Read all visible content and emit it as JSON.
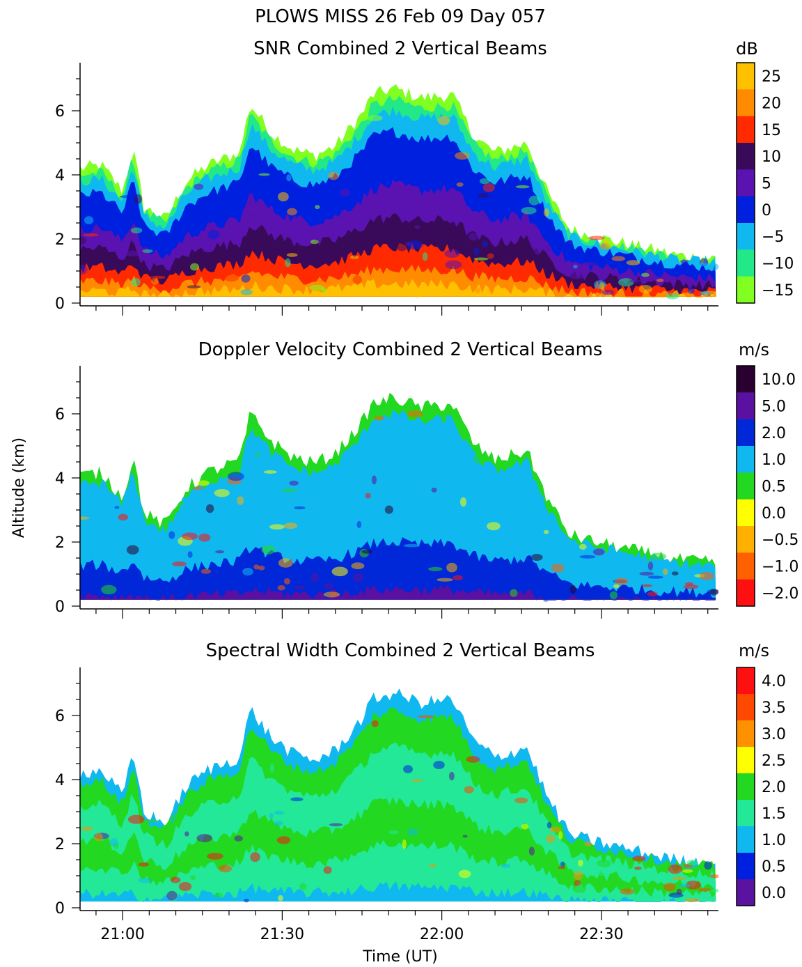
{
  "figure": {
    "title_line1": "PLOWS MISS  26 Feb 09 Day 057",
    "ylabel": "Altitude (km)",
    "xlabel": "Time (UT)"
  },
  "chart_data": [
    {
      "type": "heatmap",
      "title": "SNR Combined 2 Vertical Beams",
      "colorbar_unit": "dB",
      "colorbar_labels": [
        "25",
        "20",
        "15",
        "10",
        "5",
        "0",
        "−5",
        "−10",
        "−15"
      ],
      "colorbar_colors": [
        "#ffc000",
        "#ff8c00",
        "#ff2a00",
        "#3a0a5a",
        "#5a12b0",
        "#0020e0",
        "#10b8f0",
        "#22e888",
        "#80ff20"
      ],
      "ylim": [
        0,
        7.5
      ],
      "yticks": [
        0,
        2,
        4,
        6
      ],
      "xlim_minutes": [
        -8,
        112
      ],
      "xticks": [
        "21:00",
        "21:30",
        "22:00",
        "22:30"
      ],
      "echo_top_km": [
        [
          -8,
          4.2
        ],
        [
          -4,
          4.3
        ],
        [
          0,
          3.5
        ],
        [
          2,
          4.8
        ],
        [
          4,
          3.0
        ],
        [
          8,
          2.6
        ],
        [
          12,
          3.8
        ],
        [
          16,
          4.3
        ],
        [
          22,
          4.7
        ],
        [
          24,
          6.2
        ],
        [
          28,
          5.3
        ],
        [
          32,
          4.8
        ],
        [
          36,
          4.6
        ],
        [
          40,
          4.9
        ],
        [
          45,
          5.9
        ],
        [
          47,
          6.5
        ],
        [
          51,
          6.7
        ],
        [
          56,
          6.4
        ],
        [
          62,
          6.5
        ],
        [
          66,
          5.2
        ],
        [
          70,
          4.7
        ],
        [
          76,
          5.0
        ],
        [
          80,
          3.4
        ],
        [
          84,
          2.3
        ],
        [
          88,
          2.1
        ],
        [
          96,
          1.8
        ],
        [
          104,
          1.5
        ],
        [
          111,
          1.4
        ]
      ]
    },
    {
      "type": "heatmap",
      "title": "Doppler Velocity Combined 2 Vertical Beams",
      "colorbar_unit": "m/s",
      "colorbar_labels": [
        "10.0",
        "5.0",
        "2.0",
        "1.0",
        "0.5",
        "0.0",
        "−0.5",
        "−1.0",
        "−2.0"
      ],
      "colorbar_colors": [
        "#2a0030",
        "#5a10a0",
        "#0028d8",
        "#10b8f0",
        "#22d820",
        "#ffff00",
        "#ffb000",
        "#ff6000",
        "#ff1010"
      ],
      "ylim": [
        0,
        7.5
      ],
      "yticks": [
        0,
        2,
        4,
        6
      ],
      "xlim_minutes": [
        -8,
        112
      ],
      "xticks": [
        "21:00",
        "21:30",
        "22:00",
        "22:30"
      ]
    },
    {
      "type": "heatmap",
      "title": "Spectral Width Combined 2 Vertical Beams",
      "colorbar_unit": "m/s",
      "colorbar_labels": [
        "4.0",
        "3.5",
        "3.0",
        "2.5",
        "2.0",
        "1.5",
        "1.0",
        "0.5",
        "0.0"
      ],
      "colorbar_colors": [
        "#ff1010",
        "#ff4800",
        "#ff9000",
        "#ffff00",
        "#22d820",
        "#22e898",
        "#10b8f0",
        "#0020e0",
        "#5a12a0"
      ],
      "ylim": [
        0,
        7.5
      ],
      "yticks": [
        0,
        2,
        4,
        6
      ],
      "xlim_minutes": [
        -8,
        112
      ],
      "xticks": [
        "21:00",
        "21:30",
        "22:00",
        "22:30"
      ]
    }
  ]
}
